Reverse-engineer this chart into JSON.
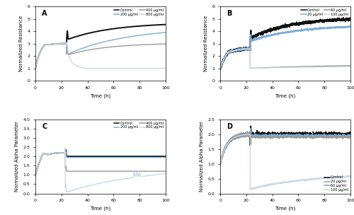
{
  "figsize": [
    5.0,
    3.04
  ],
  "dpi": 100,
  "panels": [
    {
      "label": "A",
      "ylabel": "Normalized Resistance",
      "xlabel": "Time (h)",
      "xlim": [
        0,
        100
      ],
      "ylim": [
        0,
        6
      ],
      "yticks": [
        0,
        1,
        2,
        3,
        4,
        5,
        6
      ],
      "legend_ncol": 2,
      "legend_loc": "upper right",
      "legend_labels": [
        "Control",
        "200 μg/ml",
        "400 μg/ml",
        "800 μg/ml"
      ],
      "colors": [
        "#111111",
        "#7aacda",
        "#999999",
        "#c8d8e8"
      ],
      "lws": [
        1.4,
        1.0,
        1.0,
        1.0
      ]
    },
    {
      "label": "B",
      "ylabel": "Normalized Resistance",
      "xlabel": "Time (h)",
      "xlim": [
        0,
        100
      ],
      "ylim": [
        0,
        6
      ],
      "yticks": [
        0,
        1,
        2,
        3,
        4,
        5,
        6
      ],
      "legend_ncol": 2,
      "legend_loc": "upper right",
      "legend_labels": [
        "Control",
        "20 μg/ml",
        "60 μg/ml",
        "100 μg/ml"
      ],
      "colors": [
        "#111111",
        "#7aacda",
        "#999999",
        "#c8d8e8"
      ],
      "lws": [
        1.4,
        1.0,
        1.0,
        1.0
      ]
    },
    {
      "label": "C",
      "ylabel": "Normalized Alpha Parameter",
      "xlabel": "Time (h)",
      "xlim": [
        0,
        100
      ],
      "ylim": [
        0,
        4
      ],
      "yticks": [
        0,
        0.5,
        1.0,
        1.5,
        2.0,
        2.5,
        3.0,
        3.5,
        4.0
      ],
      "legend_ncol": 2,
      "legend_loc": "upper right",
      "legend_labels": [
        "Control",
        "200 μg/ml",
        "400 μg/ml",
        "800 μg/ml"
      ],
      "colors": [
        "#111111",
        "#7aacda",
        "#999999",
        "#c8d8e8"
      ],
      "lws": [
        1.4,
        1.0,
        1.0,
        1.0
      ]
    },
    {
      "label": "D",
      "ylabel": "Normalized Alpha Parameter",
      "xlabel": "Time (h)",
      "xlim": [
        0,
        100
      ],
      "ylim": [
        0,
        2.5
      ],
      "yticks": [
        0,
        0.5,
        1.0,
        1.5,
        2.0,
        2.5
      ],
      "legend_ncol": 1,
      "legend_loc": "lower right",
      "legend_labels": [
        "Control",
        "20 μg/ml",
        "60 μg/ml",
        "100 μg/ml"
      ],
      "colors": [
        "#111111",
        "#7aacda",
        "#999999",
        "#c8d8e8"
      ],
      "lws": [
        1.4,
        1.0,
        1.0,
        1.0
      ]
    }
  ]
}
